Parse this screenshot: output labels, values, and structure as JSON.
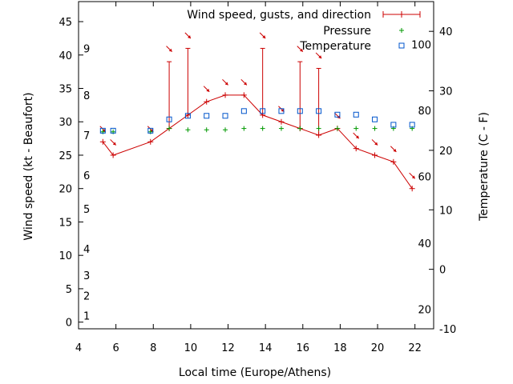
{
  "chart_data": {
    "type": "line",
    "xlabel": "Local time (Europe/Athens)",
    "ylabel": "Wind speed (kt - Beaufort)",
    "y2label": "Temperature (C - F)",
    "xlim": [
      4,
      23
    ],
    "ylim": [
      -1,
      48
    ],
    "y2lim": [
      -10,
      45
    ],
    "x_ticks": [
      4,
      6,
      8,
      10,
      12,
      14,
      16,
      18,
      20,
      22
    ],
    "y_ticks": [
      0,
      5,
      10,
      15,
      20,
      25,
      30,
      35,
      40,
      45
    ],
    "y2_ticks": [
      -10,
      0,
      10,
      20,
      30,
      40
    ],
    "beaufort_labels": [
      {
        "label": "1",
        "y": 1
      },
      {
        "label": "2",
        "y": 4
      },
      {
        "label": "3",
        "y": 7
      },
      {
        "label": "4",
        "y": 11
      },
      {
        "label": "5",
        "y": 17
      },
      {
        "label": "6",
        "y": 22
      },
      {
        "label": "7",
        "y": 28
      },
      {
        "label": "8",
        "y": 34
      },
      {
        "label": "9",
        "y": 41
      }
    ],
    "fahrenheit_labels": [
      {
        "label": "20",
        "c": -6.7
      },
      {
        "label": "40",
        "c": 4.4
      },
      {
        "label": "60",
        "c": 15.6
      },
      {
        "label": "80",
        "c": 26.7
      },
      {
        "label": "100",
        "c": 37.8
      }
    ],
    "legend": {
      "position": "top-right",
      "entries": [
        "Wind speed, gusts, and direction",
        "Pressure",
        "Temperature"
      ]
    },
    "series": [
      {
        "name": "Wind speed, gusts, and direction",
        "color": "#cc0000",
        "x": [
          5.3,
          5.85,
          7.85,
          8.85,
          9.85,
          10.85,
          11.85,
          12.85,
          13.85,
          14.85,
          15.85,
          16.85,
          17.85,
          18.85,
          19.85,
          20.85,
          21.85
        ],
        "values": [
          27,
          25,
          27,
          29,
          31,
          33,
          34,
          34,
          31,
          30,
          29,
          28,
          29,
          26,
          25,
          24,
          20
        ],
        "gusts": [
          null,
          null,
          null,
          39,
          41,
          null,
          null,
          null,
          41,
          null,
          39,
          38,
          null,
          null,
          null,
          null,
          null
        ],
        "direction_deg": [
          315,
          315,
          315,
          315,
          315,
          315,
          315,
          315,
          315,
          315,
          315,
          315,
          315,
          315,
          315,
          315,
          315
        ]
      },
      {
        "name": "Pressure",
        "color": "#009900",
        "x": [
          5.3,
          5.85,
          7.85,
          8.85,
          9.85,
          10.85,
          11.85,
          12.85,
          13.85,
          14.85,
          15.85,
          16.85,
          17.85,
          18.85,
          19.85,
          20.85,
          21.85
        ],
        "values_on_wind_axis": [
          28.5,
          28.5,
          28.5,
          29,
          28.8,
          28.8,
          28.8,
          29,
          29,
          29,
          29,
          29,
          29,
          29,
          29,
          29,
          29
        ]
      },
      {
        "name": "Temperature",
        "color": "#0055cc",
        "x": [
          5.3,
          5.85,
          7.85,
          8.85,
          9.85,
          10.85,
          11.85,
          12.85,
          13.85,
          14.85,
          15.85,
          16.85,
          17.85,
          18.85,
          19.85,
          20.85,
          21.85
        ],
        "values_c": [
          23.3,
          23.3,
          23.3,
          25.2,
          25.8,
          25.8,
          25.8,
          26.6,
          26.6,
          26.6,
          26.6,
          26.6,
          26,
          26,
          25.2,
          24.3,
          24.3
        ]
      }
    ]
  }
}
